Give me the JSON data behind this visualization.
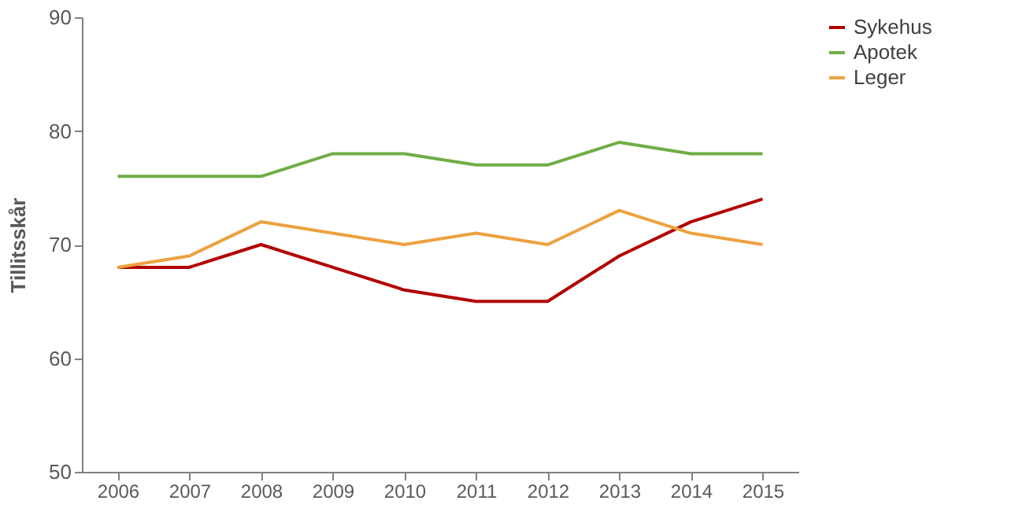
{
  "chart_data": {
    "type": "line",
    "ylabel": "Tillitsskår",
    "categories": [
      "2006",
      "2007",
      "2008",
      "2009",
      "2010",
      "2011",
      "2012",
      "2013",
      "2014",
      "2015"
    ],
    "series": [
      {
        "name": "Sykehus",
        "color": "#b20000",
        "values": [
          68,
          68,
          70,
          68,
          66,
          65,
          65,
          69,
          72,
          74
        ]
      },
      {
        "name": "Apotek",
        "color": "#70ad47",
        "values": [
          76,
          76,
          76,
          78,
          78,
          77,
          77,
          79,
          78,
          78
        ]
      },
      {
        "name": "Leger",
        "color": "#eda13f",
        "values": [
          68,
          69,
          72,
          71,
          70,
          71,
          70,
          73,
          71,
          70
        ]
      }
    ],
    "ylim": [
      50,
      90
    ],
    "yticks": [
      50,
      60,
      70,
      80,
      90
    ],
    "grid": false,
    "legend": "right",
    "marker": "none",
    "line_style": "solid"
  }
}
